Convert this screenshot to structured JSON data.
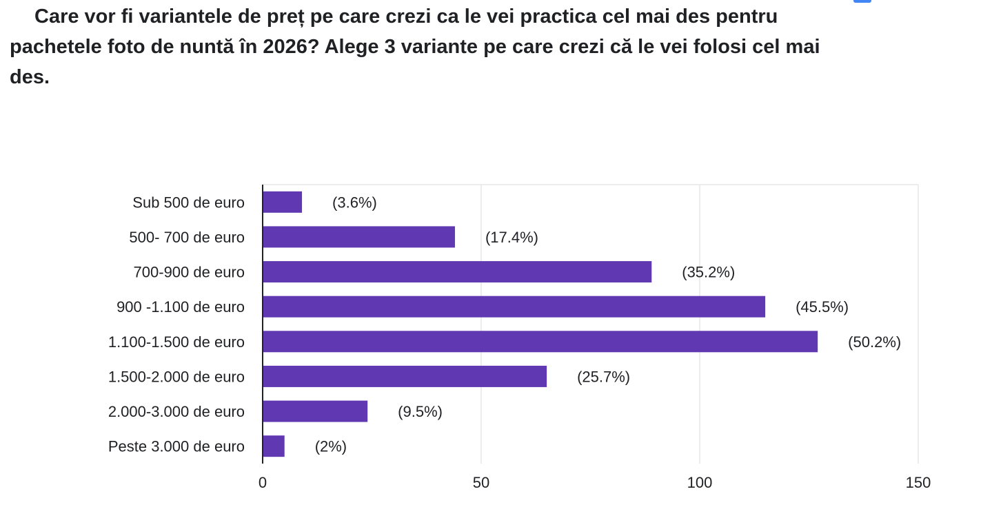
{
  "question": "Care vor fi variantele de preț pe care crezi ca le vei practica cel mai des pentru pachetele foto de nuntă în 2026? Alege 3 variante pe care crezi că le vei folosi cel mai des.",
  "colors": {
    "bar": "#6039b2",
    "gridline": "#e6e6e6",
    "axis": "#202124",
    "accent": "#4285f4"
  },
  "chart_data": {
    "type": "bar",
    "orientation": "horizontal",
    "title": "",
    "xlabel": "",
    "ylabel": "",
    "xlim": [
      0,
      150
    ],
    "x_ticks": [
      0,
      50,
      100,
      150
    ],
    "grid": true,
    "legend": "none",
    "categories": [
      "Sub 500 de euro",
      "500- 700 de euro",
      "700-900 de euro",
      "900 -1.100 de euro",
      "1.100-1.500 de euro",
      "1.500-2.000 de euro",
      "2.000-3.000 de euro",
      "Peste 3.000 de euro"
    ],
    "values": [
      9,
      44,
      89,
      115,
      127,
      65,
      24,
      5
    ],
    "data_labels": [
      "(3.6%)",
      "(17.4%)",
      "(35.2%)",
      "(45.5%)",
      "(50.2%)",
      "(25.7%)",
      "(9.5%)",
      "(2%)"
    ]
  }
}
